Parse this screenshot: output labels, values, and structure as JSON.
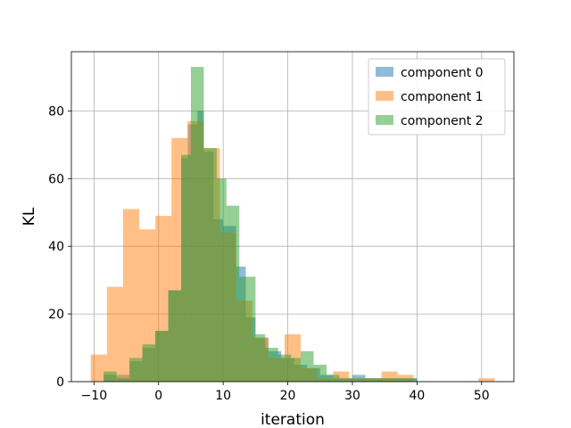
{
  "chart_data": {
    "type": "bar",
    "histogram": true,
    "xlabel": "iteration",
    "ylabel": "KL",
    "xlim": [
      -13.5,
      55
    ],
    "ylim": [
      0,
      97.5
    ],
    "xticks": [
      -10,
      0,
      10,
      20,
      30,
      40,
      50
    ],
    "yticks": [
      0,
      20,
      40,
      60,
      80
    ],
    "grid": true,
    "legend_position": "top-right",
    "colors": [
      "#1f77b4",
      "#ff7f0e",
      "#2ca02c"
    ],
    "alpha": 0.5,
    "series": [
      {
        "name": "component 0",
        "bins": [
          [
            -8.5,
            -6.5,
            2
          ],
          [
            -6.5,
            -4.5,
            2
          ],
          [
            -4.5,
            -2.5,
            6
          ],
          [
            -2.5,
            -0.5,
            10
          ],
          [
            -0.5,
            1.5,
            15
          ],
          [
            1.5,
            3.5,
            27
          ],
          [
            3.5,
            4.5,
            66
          ],
          [
            4.5,
            6.0,
            76
          ],
          [
            6.0,
            7.0,
            80
          ],
          [
            7.0,
            8.5,
            68
          ],
          [
            8.5,
            10.0,
            48
          ],
          [
            10.0,
            12.0,
            46
          ],
          [
            12.0,
            13.5,
            34
          ],
          [
            13.5,
            15.0,
            19
          ],
          [
            15.0,
            17.0,
            13
          ],
          [
            17.0,
            19.0,
            9
          ],
          [
            19.0,
            21.0,
            7
          ],
          [
            21.0,
            23.0,
            5
          ],
          [
            23.0,
            25.0,
            4
          ],
          [
            25.0,
            27.0,
            2
          ],
          [
            27.0,
            30.0,
            1
          ],
          [
            30.0,
            32.0,
            2
          ],
          [
            32.0,
            35.0,
            1
          ],
          [
            35.0,
            40.0,
            1
          ]
        ]
      },
      {
        "name": "component 1",
        "bins": [
          [
            -10.5,
            -8.0,
            8
          ],
          [
            -8.0,
            -5.5,
            28
          ],
          [
            -5.5,
            -3.0,
            51
          ],
          [
            -3.0,
            -0.5,
            45
          ],
          [
            -0.5,
            2.0,
            49
          ],
          [
            2.0,
            4.5,
            72
          ],
          [
            4.5,
            7.0,
            77
          ],
          [
            7.0,
            9.5,
            69
          ],
          [
            9.5,
            12.0,
            44
          ],
          [
            12.0,
            14.5,
            24
          ],
          [
            14.5,
            17.0,
            13
          ],
          [
            17.0,
            19.5,
            7
          ],
          [
            19.5,
            22.0,
            14
          ],
          [
            22.0,
            24.5,
            4
          ],
          [
            24.5,
            27.0,
            1
          ],
          [
            27.0,
            29.5,
            3
          ],
          [
            29.5,
            32.0,
            1
          ],
          [
            32.0,
            34.5,
            1
          ],
          [
            34.5,
            37.0,
            3
          ],
          [
            37.0,
            39.5,
            2
          ],
          [
            49.5,
            52.0,
            1
          ]
        ]
      },
      {
        "name": "component 2",
        "bins": [
          [
            -8.5,
            -6.5,
            3
          ],
          [
            -6.5,
            -4.5,
            1
          ],
          [
            -4.5,
            -2.5,
            7
          ],
          [
            -2.5,
            -0.5,
            11
          ],
          [
            -0.5,
            1.5,
            15
          ],
          [
            1.5,
            3.5,
            27
          ],
          [
            3.5,
            5.0,
            67
          ],
          [
            5.0,
            7.0,
            93
          ],
          [
            7.0,
            9.0,
            69
          ],
          [
            9.0,
            10.5,
            60
          ],
          [
            10.5,
            12.5,
            52
          ],
          [
            12.5,
            15.0,
            31
          ],
          [
            15.0,
            16.5,
            14
          ],
          [
            16.5,
            18.5,
            10
          ],
          [
            18.5,
            20.5,
            8
          ],
          [
            20.5,
            22.0,
            7
          ],
          [
            22.0,
            24.0,
            9
          ],
          [
            24.0,
            26.0,
            5
          ],
          [
            26.0,
            28.0,
            2
          ],
          [
            28.0,
            30.0,
            1
          ],
          [
            30.0,
            33.0,
            1
          ],
          [
            33.0,
            36.0,
            1
          ],
          [
            36.0,
            40.0,
            1
          ]
        ]
      }
    ]
  }
}
